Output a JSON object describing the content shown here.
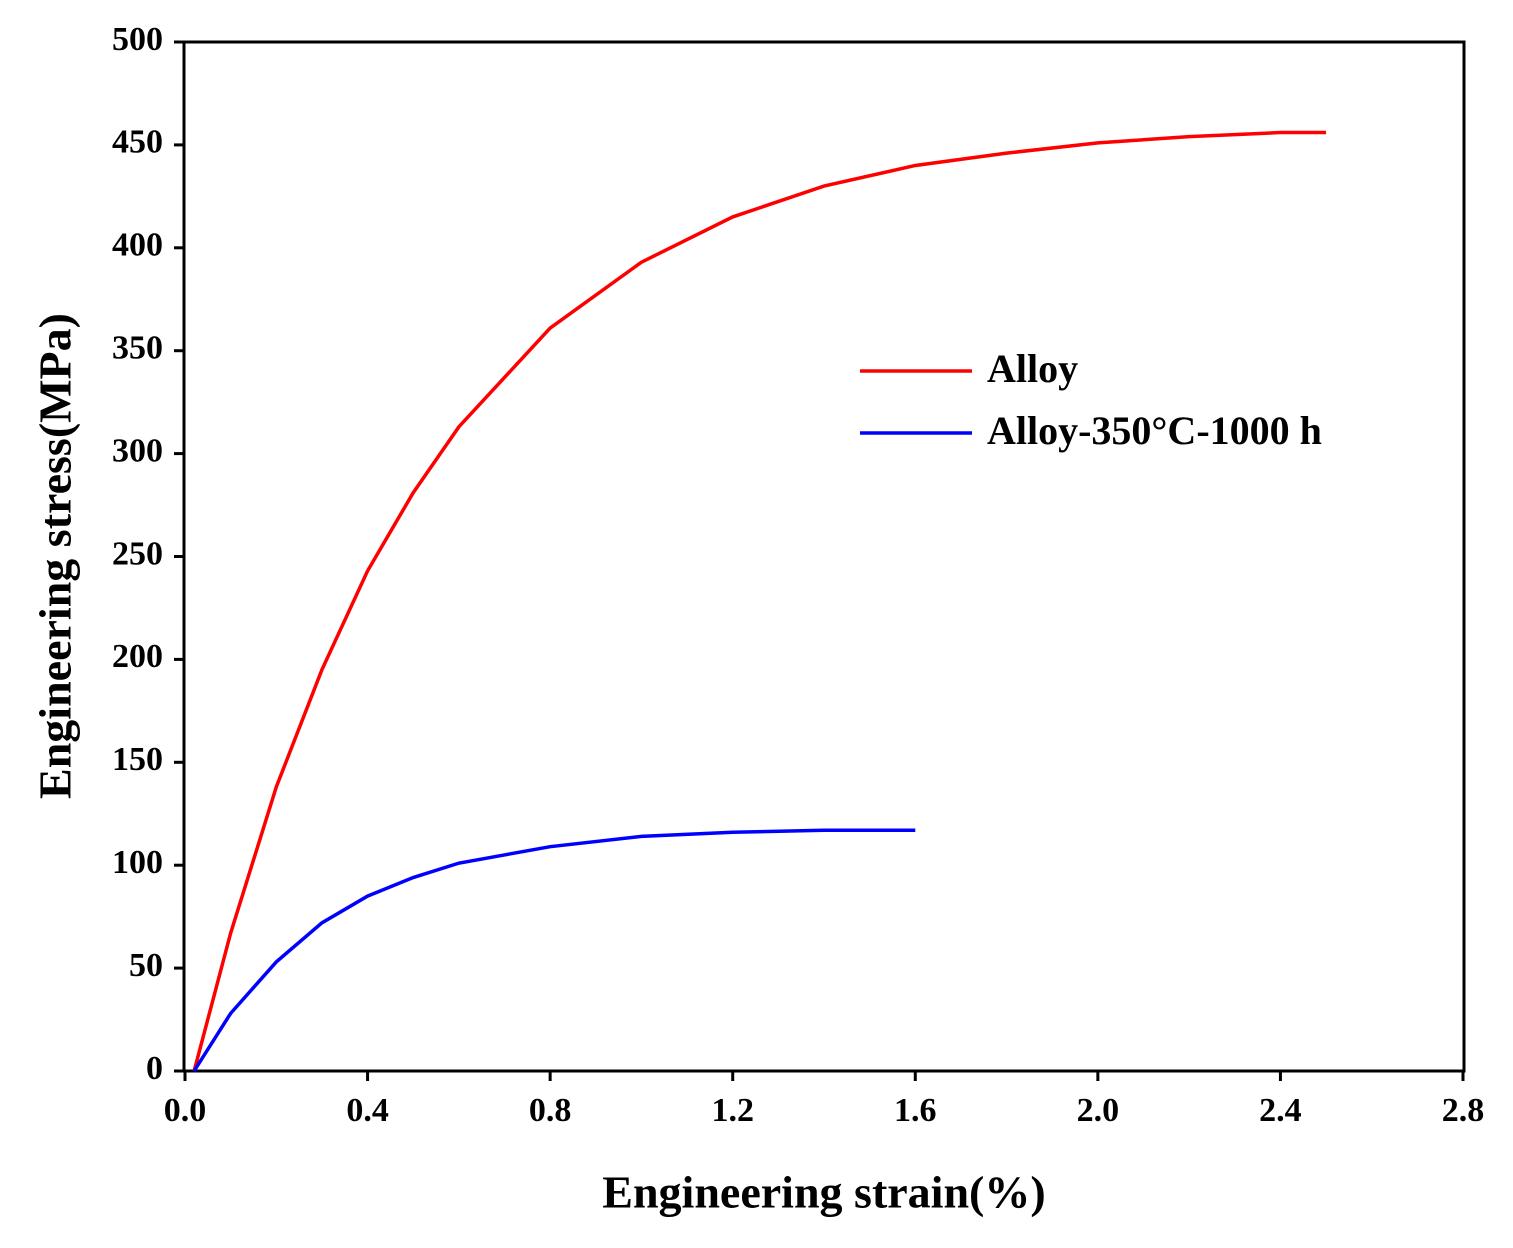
{
  "chart_data": {
    "type": "line",
    "xlabel": "Engineering strain(%)",
    "ylabel": "Engineering stress(MPa)",
    "xlim": [
      0,
      2.8
    ],
    "ylim": [
      0,
      500
    ],
    "xticks": [
      {
        "value": 0,
        "label": "0.0"
      },
      0.4,
      0.8,
      1.2,
      1.6,
      {
        "value": 2,
        "label": "2.0"
      },
      2.4,
      2.8
    ],
    "yticks": [
      0,
      50,
      100,
      150,
      200,
      250,
      300,
      350,
      400,
      450,
      500
    ],
    "legend": "right",
    "series": [
      {
        "name": "Alloy",
        "color": "#ff0000",
        "x": [
          0.02,
          0.1,
          0.2,
          0.3,
          0.4,
          0.5,
          0.6,
          0.8,
          1.0,
          1.2,
          1.4,
          1.6,
          1.8,
          2.0,
          2.2,
          2.4,
          2.5
        ],
        "values": [
          0,
          67,
          138,
          195,
          243,
          281,
          313,
          361,
          393,
          415,
          430,
          440,
          446,
          451,
          454,
          456,
          456
        ]
      },
      {
        "name": "Alloy-350°C-1000 h",
        "color": "#0000ff",
        "x": [
          0.02,
          0.1,
          0.2,
          0.3,
          0.4,
          0.5,
          0.6,
          0.8,
          1.0,
          1.2,
          1.4,
          1.6
        ],
        "values": [
          0,
          28,
          53,
          72,
          85,
          94,
          101,
          109,
          114,
          116,
          117,
          117
        ]
      }
    ]
  }
}
